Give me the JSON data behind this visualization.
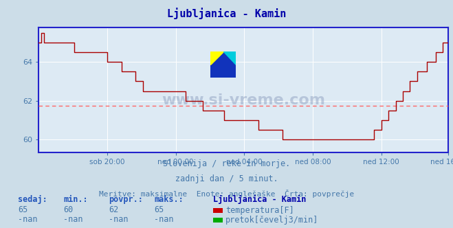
{
  "title": "Ljubljanica - Kamin",
  "background_color": "#ccdde8",
  "plot_background": "#ddeaf4",
  "grid_color": "#ffffff",
  "line_color": "#aa0000",
  "avg_line_color": "#ff6666",
  "axis_color": "#2222cc",
  "text_color": "#4477aa",
  "xlabel_ticks": [
    "sob 20:00",
    "ned 00:00",
    "ned 04:00",
    "ned 08:00",
    "ned 12:00",
    "ned 16:00"
  ],
  "yticks": [
    60,
    62,
    64
  ],
  "ylim": [
    59.3,
    65.8
  ],
  "avg_value": 61.75,
  "subtitle1": "Slovenija / reke in morje.",
  "subtitle2": "zadnji dan / 5 minut.",
  "subtitle3": "Meritve: maksimalne  Enote: anglešaške  Črta: povprečje",
  "legend_title": "Ljubljanica - Kamin",
  "legend_items": [
    {
      "label": "temperatura[F]",
      "color": "#cc0000"
    },
    {
      "label": "pretok[čevelj3/min]",
      "color": "#00aa00"
    }
  ],
  "stats_headers": [
    "sedaj:",
    "min.:",
    "povpr.:",
    "maks.:"
  ],
  "stats_row1": [
    "65",
    "60",
    "62",
    "65"
  ],
  "stats_row2": [
    "-nan",
    "-nan",
    "-nan",
    "-nan"
  ],
  "n_points": 288
}
